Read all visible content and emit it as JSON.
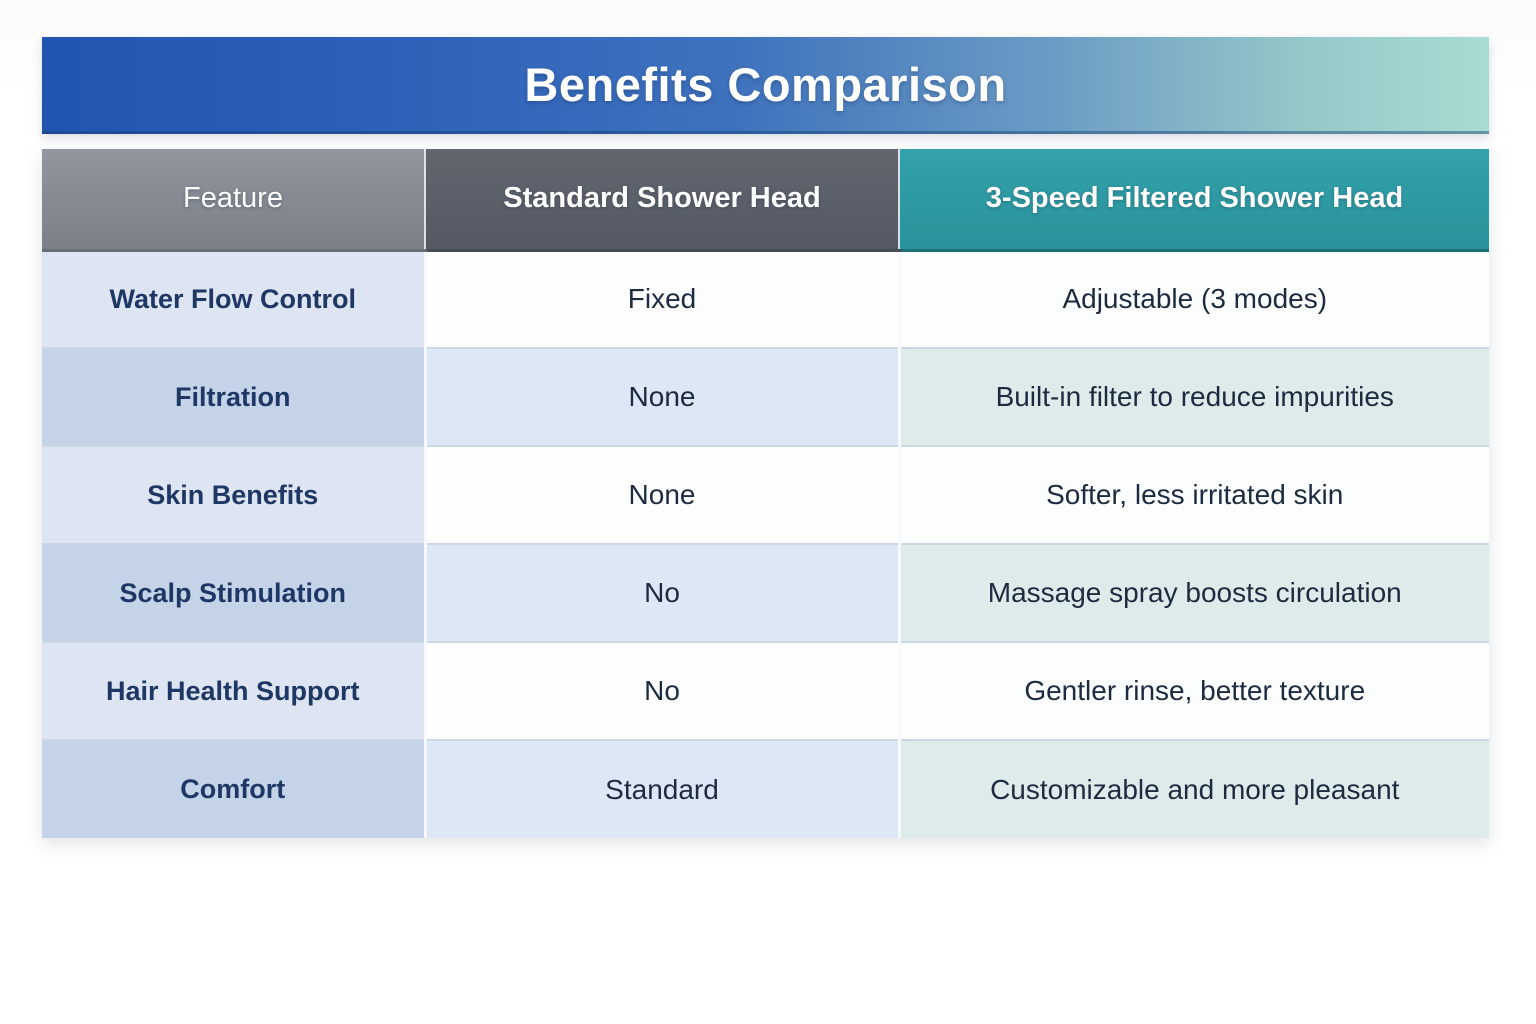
{
  "title": "Benefits Comparison",
  "table": {
    "columns": [
      {
        "label": "Feature"
      },
      {
        "label": "Standard Shower Head"
      },
      {
        "label": "3-Speed Filtered Shower Head"
      }
    ],
    "rows": [
      {
        "feature": "Water Flow Control",
        "standard": "Fixed",
        "filtered": "Adjustable (3 modes)"
      },
      {
        "feature": "Filtration",
        "standard": "None",
        "filtered": "Built-in filter to reduce impurities"
      },
      {
        "feature": "Skin Benefits",
        "standard": "None",
        "filtered": "Softer, less irritated skin"
      },
      {
        "feature": "Scalp Stimulation",
        "standard": "No",
        "filtered": "Massage spray boosts circulation"
      },
      {
        "feature": "Hair Health Support",
        "standard": "No",
        "filtered": "Gentler rinse, better texture"
      },
      {
        "feature": "Comfort",
        "standard": "Standard",
        "filtered": "Customizable and more pleasant"
      }
    ]
  },
  "colors": {
    "title_gradient_start": "#2254b1",
    "title_gradient_end": "#a9dcd3",
    "header_feature_bg": "#848992",
    "header_standard_bg": "#5a5f69",
    "header_filtered_bg": "#2d99a2",
    "feature_text": "#1e3765",
    "value_text": "#1d2b40",
    "row_odd_feature_bg": "#dce5f1",
    "row_even_feature_bg": "#c5d3e9",
    "row_even_standard_bg": "#dde7f5",
    "row_even_filtered_bg": "#ddecea"
  }
}
